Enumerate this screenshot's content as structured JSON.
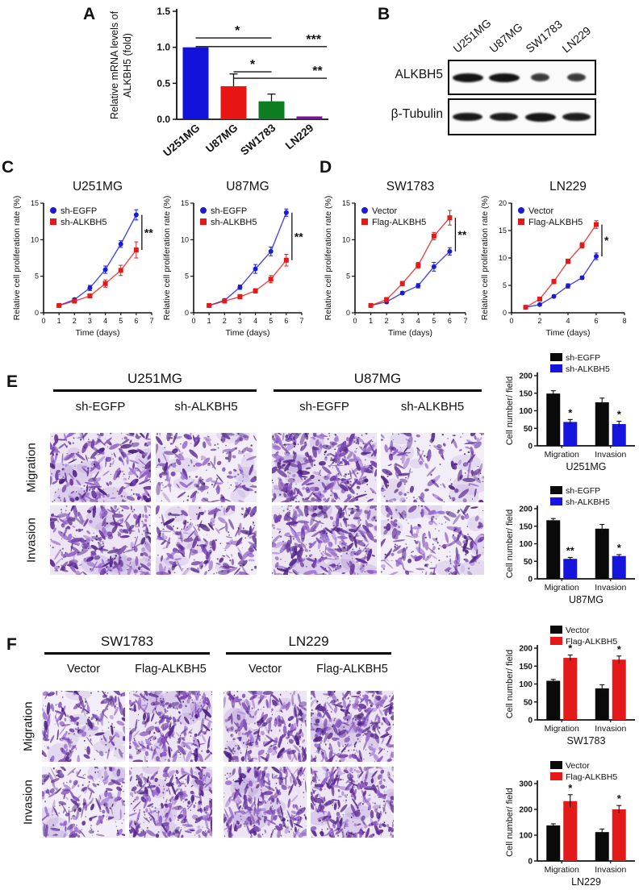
{
  "panels": {
    "A": {
      "label": "A"
    },
    "B": {
      "label": "B",
      "blot": {
        "lanes": [
          "U251MG",
          "U87MG",
          "SW1783",
          "LN229"
        ],
        "rows": [
          {
            "label": "ALKBH5",
            "intensities": [
              1.0,
              1.0,
              0.62,
              0.62
            ]
          },
          {
            "label": "β-Tubulin",
            "intensities": [
              0.95,
              0.9,
              1.0,
              0.9
            ]
          }
        ]
      }
    },
    "C": {
      "label": "C"
    },
    "D": {
      "label": "D"
    },
    "E": {
      "label": "E",
      "rows": [
        "Migration",
        "Invasion"
      ],
      "groups": [
        {
          "title": "U251MG",
          "cols": [
            "sh-EGFP",
            "sh-ALKBH5"
          ]
        },
        {
          "title": "U87MG",
          "cols": [
            "sh-EGFP",
            "sh-ALKBH5"
          ]
        }
      ],
      "densities": [
        [
          0.75,
          0.4,
          0.95,
          0.35
        ],
        [
          0.8,
          0.55,
          0.95,
          0.5
        ]
      ]
    },
    "F": {
      "label": "F",
      "rows": [
        "Migration",
        "Invasion"
      ],
      "groups": [
        {
          "title": "SW1783",
          "cols": [
            "Vector",
            "Flag-ALKBH5"
          ]
        },
        {
          "title": "LN229",
          "cols": [
            "Vector",
            "Flag-ALKBH5"
          ]
        }
      ],
      "densities": [
        [
          0.45,
          0.85,
          0.8,
          0.95
        ],
        [
          0.5,
          0.8,
          0.85,
          0.95
        ]
      ]
    }
  },
  "chart_data": [
    {
      "id": "A",
      "type": "bar",
      "ylabel_lines": [
        "Relative mRNA levels of",
        "ALKBH5 (fold)"
      ],
      "categories": [
        "U251MG",
        "U87MG",
        "SW1783",
        "LN229"
      ],
      "values": [
        1.0,
        0.46,
        0.25,
        0.04
      ],
      "errors": [
        0,
        0.17,
        0.1,
        0.012
      ],
      "colors": [
        "#1212dd",
        "#e81515",
        "#0c7d20",
        "#7c0fa0"
      ],
      "ylim": [
        0,
        1.5
      ],
      "yticks": [
        0,
        0.5,
        1,
        1.5
      ],
      "ytick_labels": [
        "0.0",
        "0.5",
        "1.0",
        "1.5"
      ],
      "significance": [
        {
          "label": "*",
          "from": 0,
          "to": 2,
          "y": 1.13,
          "star_f": 0.55,
          "extend": false
        },
        {
          "label": "***",
          "from": 0,
          "to": 3,
          "y": 1.01,
          "star_f": 0.9,
          "extend": true
        },
        {
          "label": "*",
          "from": 1,
          "to": 2,
          "y": 0.66,
          "star_f": 0.5,
          "extend": false
        },
        {
          "label": "**",
          "from": 1,
          "to": 3,
          "y": 0.57,
          "star_f": 0.9,
          "extend": true
        }
      ]
    },
    {
      "id": "C1",
      "type": "line",
      "title": "U251MG",
      "xlabel": "Time (days)",
      "ylabel": "Relative cell proliferation rate (%)",
      "x": [
        1,
        2,
        3,
        4,
        5,
        6
      ],
      "xlim": [
        0,
        7
      ],
      "ylim": [
        0,
        15
      ],
      "xticks": [
        0,
        1,
        2,
        3,
        4,
        5,
        6,
        7
      ],
      "yticks": [
        0,
        5,
        10,
        15
      ],
      "series": [
        {
          "name": "sh-EGFP",
          "color": "#1b1bd6",
          "marker": "circle",
          "values": [
            1.0,
            1.8,
            3.4,
            5.9,
            9.4,
            13.4
          ],
          "errors": [
            0.15,
            0.2,
            0.35,
            0.5,
            0.45,
            0.7
          ]
        },
        {
          "name": "sh-ALKBH5",
          "color": "#e41a1a",
          "marker": "square",
          "values": [
            1.0,
            1.6,
            2.3,
            4.0,
            5.8,
            8.6
          ],
          "errors": [
            0.15,
            0.2,
            0.25,
            0.5,
            0.7,
            1.1
          ]
        }
      ],
      "sig": "**"
    },
    {
      "id": "C2",
      "type": "line",
      "title": "U87MG",
      "xlabel": "Time (days)",
      "ylabel": "Relative cell proliferation rate (%)",
      "x": [
        1,
        2,
        3,
        4,
        5,
        6
      ],
      "xlim": [
        0,
        7
      ],
      "ylim": [
        0,
        15
      ],
      "xticks": [
        0,
        1,
        2,
        3,
        4,
        5,
        6,
        7
      ],
      "yticks": [
        0,
        5,
        10,
        15
      ],
      "series": [
        {
          "name": "sh-EGFP",
          "color": "#1b1bd6",
          "marker": "circle",
          "values": [
            1.0,
            1.7,
            3.5,
            6.0,
            8.4,
            13.7
          ],
          "errors": [
            0.15,
            0.2,
            0.3,
            0.6,
            0.6,
            0.5
          ]
        },
        {
          "name": "sh-ALKBH5",
          "color": "#e41a1a",
          "marker": "square",
          "values": [
            1.0,
            1.6,
            2.2,
            3.0,
            4.6,
            7.2
          ],
          "errors": [
            0.15,
            0.2,
            0.3,
            0.3,
            0.5,
            0.8
          ]
        }
      ],
      "sig": "**"
    },
    {
      "id": "D1",
      "type": "line",
      "title": "SW1783",
      "xlabel": "Time (days)",
      "ylabel": "Relative cell proliferation rate (%)",
      "x": [
        1,
        2,
        3,
        4,
        5,
        6
      ],
      "xlim": [
        0,
        7
      ],
      "ylim": [
        0,
        15
      ],
      "xticks": [
        0,
        1,
        2,
        3,
        4,
        5,
        6,
        7
      ],
      "yticks": [
        0,
        5,
        10,
        15
      ],
      "series": [
        {
          "name": "Vector",
          "color": "#1b1bd6",
          "marker": "circle",
          "values": [
            1.0,
            1.5,
            2.7,
            3.7,
            6.3,
            8.4
          ],
          "errors": [
            0.1,
            0.25,
            0.2,
            0.3,
            0.6,
            0.5
          ]
        },
        {
          "name": "Flag-ALKBH5",
          "color": "#e41a1a",
          "marker": "square",
          "values": [
            1.0,
            1.8,
            4.0,
            6.5,
            10.5,
            13.0
          ],
          "errors": [
            0.1,
            0.3,
            0.3,
            0.4,
            0.5,
            1.0
          ]
        }
      ],
      "sig": "**"
    },
    {
      "id": "D2",
      "type": "line",
      "title": "LN229",
      "xlabel": "Time (days)",
      "ylabel": "Relative cell proliferation rate (%)",
      "x": [
        1,
        2,
        3,
        4,
        5,
        6
      ],
      "xlim": [
        0,
        8
      ],
      "ylim": [
        0,
        20
      ],
      "xticks": [
        0,
        2,
        4,
        6,
        8
      ],
      "yticks": [
        0,
        5,
        10,
        15,
        20
      ],
      "series": [
        {
          "name": "Vector",
          "color": "#1b1bd6",
          "marker": "circle",
          "values": [
            1.0,
            1.5,
            3.0,
            4.9,
            6.4,
            10.3
          ],
          "errors": [
            0.1,
            0.2,
            0.2,
            0.4,
            0.3,
            0.6
          ]
        },
        {
          "name": "Flag-ALKBH5",
          "color": "#e41a1a",
          "marker": "square",
          "values": [
            1.0,
            2.5,
            5.7,
            9.4,
            12.3,
            16.1
          ],
          "errors": [
            0.1,
            0.2,
            0.4,
            0.4,
            0.5,
            0.7
          ]
        }
      ],
      "sig": "*"
    },
    {
      "id": "E1",
      "type": "grouped_bar",
      "title": "U251MG",
      "ylabel": "Cell number/ field",
      "categories": [
        "Migration",
        "Invasion"
      ],
      "ylim": [
        0,
        200
      ],
      "yticks": [
        0,
        50,
        100,
        150,
        200
      ],
      "series": [
        {
          "name": "sh-EGFP",
          "color": "#0a0a0a",
          "values": [
            149,
            124
          ],
          "errors": [
            8,
            12
          ]
        },
        {
          "name": "sh-ALKBH5",
          "color": "#1515dd",
          "values": [
            68,
            62
          ],
          "errors": [
            7,
            8
          ],
          "sig": [
            "*",
            "*"
          ]
        }
      ]
    },
    {
      "id": "E2",
      "type": "grouped_bar",
      "title": "U87MG",
      "ylabel": "Cell number/ field",
      "categories": [
        "Migration",
        "Invasion"
      ],
      "ylim": [
        0,
        200
      ],
      "yticks": [
        0,
        50,
        100,
        150,
        200
      ],
      "series": [
        {
          "name": "sh-EGFP",
          "color": "#0a0a0a",
          "values": [
            167,
            143
          ],
          "errors": [
            5,
            12
          ]
        },
        {
          "name": "sh-ALKBH5",
          "color": "#1515dd",
          "values": [
            57,
            65
          ],
          "errors": [
            4,
            4
          ],
          "sig": [
            "**",
            "*"
          ]
        }
      ]
    },
    {
      "id": "F1",
      "type": "grouped_bar",
      "title": "SW1783",
      "ylabel": "Cell number/ field",
      "categories": [
        "Migration",
        "Invasion"
      ],
      "ylim": [
        0,
        200
      ],
      "yticks": [
        0,
        50,
        100,
        150,
        200
      ],
      "series": [
        {
          "name": "Vector",
          "color": "#0a0a0a",
          "values": [
            109,
            88
          ],
          "errors": [
            4,
            10
          ]
        },
        {
          "name": "Flag-ALKBH5",
          "color": "#e41a1a",
          "values": [
            173,
            168
          ],
          "errors": [
            8,
            10
          ],
          "sig": [
            "*",
            "*"
          ]
        }
      ]
    },
    {
      "id": "F2",
      "type": "grouped_bar",
      "title": "LN229",
      "ylabel": "Cell number/ field",
      "categories": [
        "Migration",
        "Invasion"
      ],
      "ylim": [
        0,
        300
      ],
      "yticks": [
        0,
        100,
        200,
        300
      ],
      "series": [
        {
          "name": "Vector",
          "color": "#0a0a0a",
          "values": [
            138,
            112
          ],
          "errors": [
            6,
            12
          ]
        },
        {
          "name": "Flag-ALKBH5",
          "color": "#e41a1a",
          "values": [
            232,
            200
          ],
          "errors": [
            25,
            15
          ],
          "sig": [
            "*",
            "*"
          ]
        }
      ]
    }
  ]
}
